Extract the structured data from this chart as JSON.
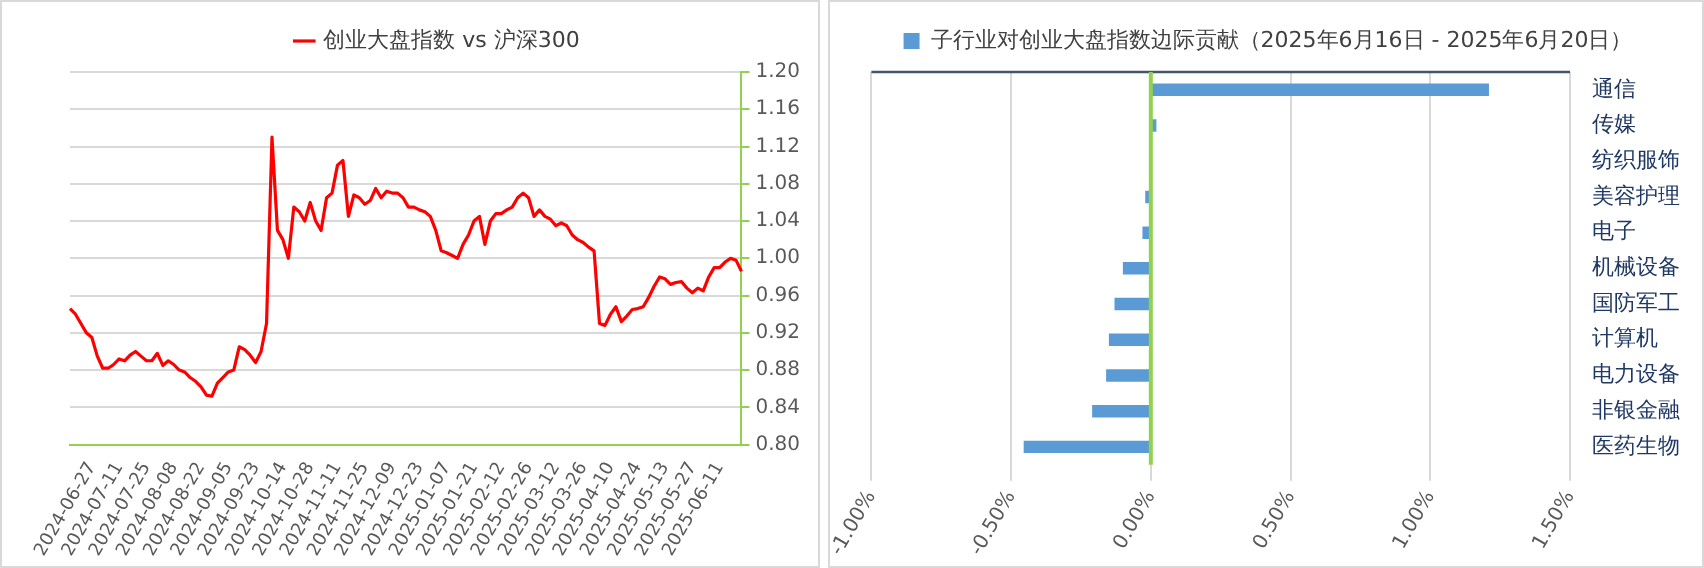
{
  "chart_data": [
    {
      "type": "line",
      "categories": [
        null,
        null,
        null,
        null,
        "2024-06-27",
        null,
        null,
        null,
        null,
        "2024-07-11",
        null,
        null,
        null,
        null,
        "2024-07-25",
        null,
        null,
        null,
        null,
        "2024-08-08",
        null,
        null,
        null,
        null,
        "2024-08-22",
        null,
        null,
        null,
        null,
        "2024-09-05",
        null,
        null,
        null,
        null,
        "2024-09-23",
        null,
        null,
        null,
        null,
        "2024-10-14",
        null,
        null,
        null,
        null,
        "2024-10-28",
        null,
        null,
        null,
        null,
        "2024-11-11",
        null,
        null,
        null,
        null,
        "2024-11-25",
        null,
        null,
        null,
        null,
        "2024-12-09",
        null,
        null,
        null,
        null,
        "2024-12-23",
        null,
        null,
        null,
        null,
        "2025-01-07",
        null,
        null,
        null,
        null,
        "2025-01-21",
        null,
        null,
        null,
        null,
        "2025-02-12",
        null,
        null,
        null,
        null,
        "2025-02-26",
        null,
        null,
        null,
        null,
        "2025-03-12",
        null,
        null,
        null,
        null,
        "2025-03-26",
        null,
        null,
        null,
        null,
        "2025-04-10",
        null,
        null,
        null,
        null,
        "2025-04-24",
        null,
        null,
        null,
        null,
        "2025-05-13",
        null,
        null,
        null,
        null,
        "2025-05-27",
        null,
        null,
        null,
        null,
        "2025-06-11",
        null,
        null,
        null,
        null
      ],
      "series": [
        {
          "name": "创业大盘指数 vs 沪深300",
          "color": "#ff0000",
          "values": [
            0.946,
            0.94,
            0.93,
            0.92,
            0.915,
            0.895,
            0.882,
            0.882,
            0.886,
            0.892,
            0.89,
            0.896,
            0.9,
            0.895,
            0.89,
            0.89,
            0.898,
            0.885,
            0.89,
            0.886,
            0.88,
            0.878,
            0.872,
            0.868,
            0.862,
            0.853,
            0.852,
            0.866,
            0.872,
            0.878,
            0.88,
            0.905,
            0.902,
            0.896,
            0.888,
            0.9,
            0.93,
            1.13,
            1.03,
            1.02,
            1.0,
            1.055,
            1.05,
            1.04,
            1.06,
            1.04,
            1.03,
            1.065,
            1.07,
            1.1,
            1.105,
            1.045,
            1.068,
            1.065,
            1.058,
            1.062,
            1.075,
            1.065,
            1.072,
            1.07,
            1.07,
            1.065,
            1.055,
            1.055,
            1.052,
            1.05,
            1.045,
            1.03,
            1.008,
            1.006,
            1.003,
            1.0,
            1.015,
            1.025,
            1.04,
            1.045,
            1.015,
            1.04,
            1.048,
            1.048,
            1.052,
            1.055,
            1.065,
            1.07,
            1.065,
            1.045,
            1.052,
            1.045,
            1.042,
            1.035,
            1.038,
            1.035,
            1.025,
            1.02,
            1.017,
            1.012,
            1.008,
            0.93,
            0.928,
            0.94,
            0.948,
            0.932,
            0.938,
            0.945,
            0.946,
            0.948,
            0.958,
            0.97,
            0.98,
            0.978,
            0.972,
            0.974,
            0.975,
            0.968,
            0.963,
            0.968,
            0.965,
            0.98,
            0.99,
            0.99,
            0.996,
            1.0,
            0.998,
            0.986
          ]
        }
      ],
      "ylim": [
        0.8,
        1.2
      ],
      "yticks": [
        {
          "value": 0.8,
          "label": "0.80"
        },
        {
          "value": 0.84,
          "label": "0.84"
        },
        {
          "value": 0.88,
          "label": "0.88"
        },
        {
          "value": 0.92,
          "label": "0.92"
        },
        {
          "value": 0.96,
          "label": "0.96"
        },
        {
          "value": 1.0,
          "label": "1.00"
        },
        {
          "value": 1.04,
          "label": "1.04"
        },
        {
          "value": 1.08,
          "label": "1.08"
        },
        {
          "value": 1.12,
          "label": "1.12"
        },
        {
          "value": 1.16,
          "label": "1.16"
        },
        {
          "value": 1.2,
          "label": "1.20"
        }
      ],
      "grid": "y",
      "legend": "top",
      "marker": "none",
      "line_style": "solid"
    },
    {
      "type": "bar",
      "orientation": "horizontal",
      "categories": [
        "通信",
        "传媒",
        "纺织服饰",
        "美容护理",
        "电子",
        "机械设备",
        "国防军工",
        "计算机",
        "电力设备",
        "非银金融",
        "医药生物"
      ],
      "series": [
        {
          "name": "子行业对创业大盘指数边际贡献（2025年6月16日 - 2025年6月20日）",
          "color": "#5b9bd5",
          "values": [
            1.21,
            0.02,
            0.0,
            -0.02,
            -0.03,
            -0.1,
            -0.13,
            -0.15,
            -0.16,
            -0.21,
            -0.455
          ]
        }
      ],
      "xlim": [
        -1.0,
        1.5
      ],
      "xticks": [
        {
          "value": -1.0,
          "label": "-1.00%"
        },
        {
          "value": -0.5,
          "label": "-0.50%"
        },
        {
          "value": 0,
          "label": "0.00%"
        },
        {
          "value": 0.5,
          "label": "0.50%"
        },
        {
          "value": 1.0,
          "label": "1.00%"
        },
        {
          "value": 1.5,
          "label": "1.50%"
        }
      ],
      "grid": "x",
      "legend": "top",
      "ref_lines": [
        {
          "axis": "x",
          "value": 0,
          "color": "#92d050"
        }
      ]
    }
  ]
}
